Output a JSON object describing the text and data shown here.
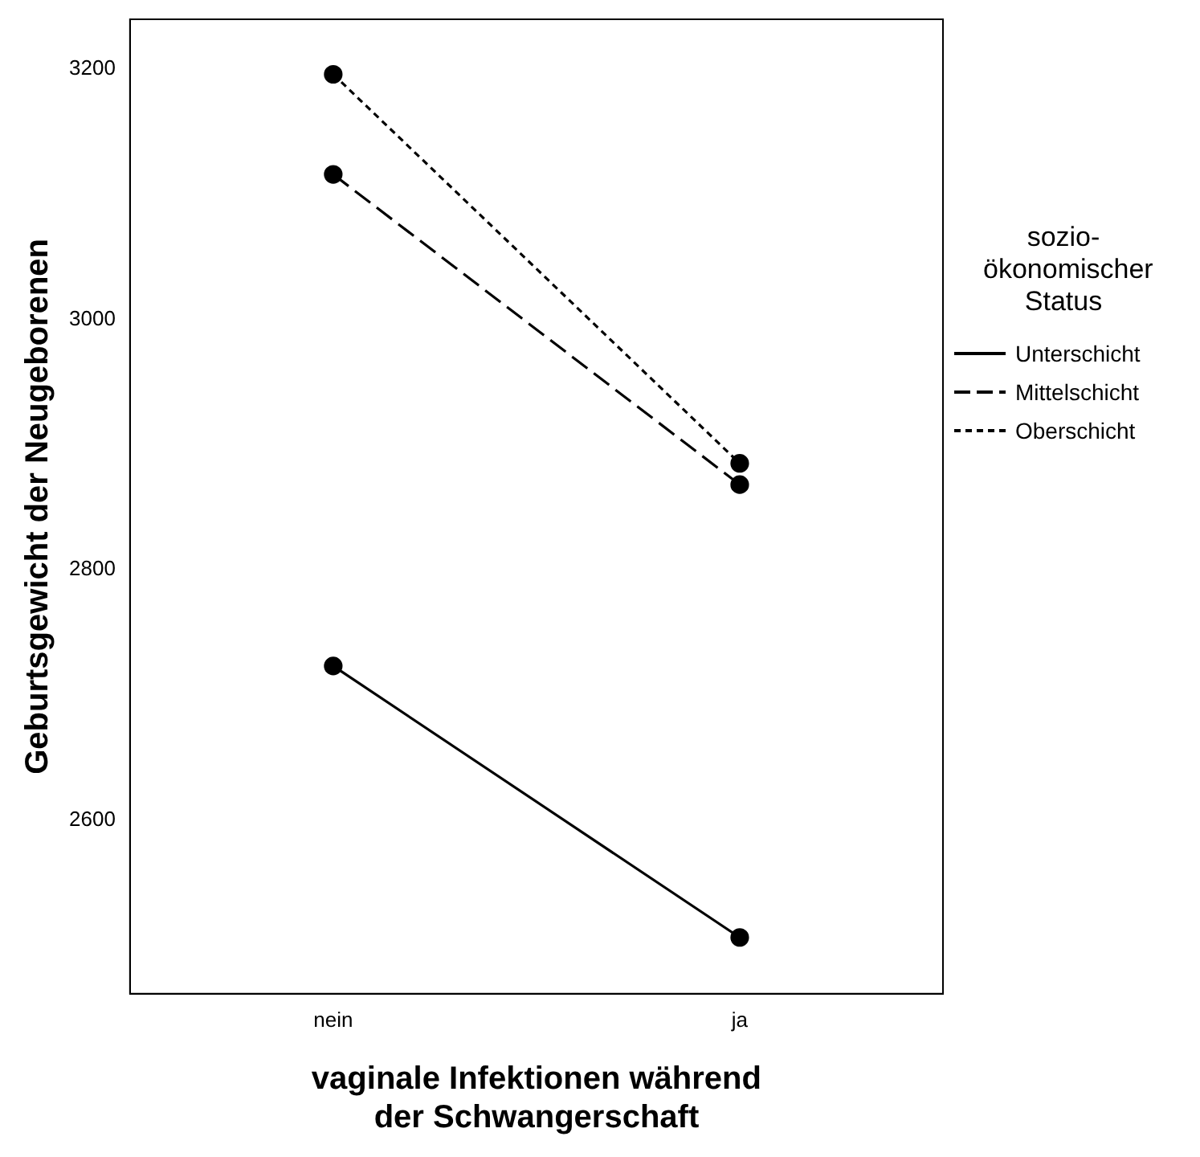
{
  "chart_data": {
    "type": "line",
    "xlabel": "vaginale Infektionen während der Schwangerschaft",
    "ylabel": "Geburtsgewicht der Neugeborenen",
    "legend_title": "sozio-ökonomischer Status",
    "categories": [
      "nein",
      "ja"
    ],
    "series": [
      {
        "name": "Unterschicht",
        "color": "#000000",
        "line_style": "solid",
        "values": [
          2723,
          2506
        ]
      },
      {
        "name": "Mittelschicht",
        "color": "#000000",
        "line_style": "dashed",
        "values": [
          3116,
          2868
        ]
      },
      {
        "name": "Oberschicht",
        "color": "#000000",
        "line_style": "dotted",
        "values": [
          3196,
          2885
        ]
      }
    ],
    "ylim": [
      2461,
      3240
    ],
    "yticks": [
      2600,
      2800,
      3000,
      3200
    ],
    "grid": false,
    "legend": "right",
    "marker": "circle"
  }
}
